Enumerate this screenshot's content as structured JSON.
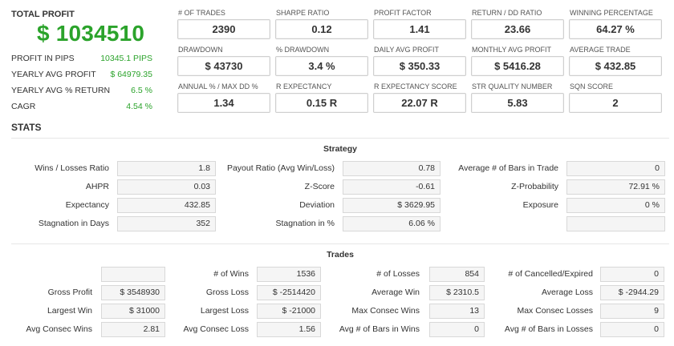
{
  "summary": {
    "total_profit_label": "TOTAL PROFIT",
    "total_profit_value": "$ 1034510",
    "rows": [
      {
        "label": "PROFIT IN PIPS",
        "value": "10345.1 PIPS"
      },
      {
        "label": "YEARLY AVG PROFIT",
        "value": "$ 64979.35"
      },
      {
        "label": "YEARLY AVG % RETURN",
        "value": "6.5 %"
      },
      {
        "label": "CAGR",
        "value": "4.54 %"
      }
    ]
  },
  "metrics": [
    {
      "label": "# OF TRADES",
      "value": "2390"
    },
    {
      "label": "SHARPE RATIO",
      "value": "0.12"
    },
    {
      "label": "PROFIT FACTOR",
      "value": "1.41"
    },
    {
      "label": "RETURN / DD RATIO",
      "value": "23.66"
    },
    {
      "label": "WINNING PERCENTAGE",
      "value": "64.27 %"
    },
    {
      "label": "DRAWDOWN",
      "value": "$ 43730"
    },
    {
      "label": "% DRAWDOWN",
      "value": "3.4 %"
    },
    {
      "label": "DAILY AVG PROFIT",
      "value": "$ 350.33"
    },
    {
      "label": "MONTHLY AVG PROFIT",
      "value": "$ 5416.28"
    },
    {
      "label": "AVERAGE TRADE",
      "value": "$ 432.85"
    },
    {
      "label": "ANNUAL % / MAX DD %",
      "value": "1.34"
    },
    {
      "label": "R EXPECTANCY",
      "value": "0.15 R"
    },
    {
      "label": "R EXPECTANCY SCORE",
      "value": "22.07 R"
    },
    {
      "label": "STR QUALITY NUMBER",
      "value": "5.83"
    },
    {
      "label": "SQN SCORE",
      "value": "2"
    }
  ],
  "stats": {
    "title": "STATS",
    "strategy": {
      "heading": "Strategy",
      "rows": [
        [
          {
            "label": "Wins / Losses Ratio",
            "value": "1.8"
          },
          {
            "label": "Payout Ratio (Avg Win/Loss)",
            "value": "0.78"
          },
          {
            "label": "Average # of Bars in Trade",
            "value": "0"
          }
        ],
        [
          {
            "label": "AHPR",
            "value": "0.03"
          },
          {
            "label": "Z-Score",
            "value": "-0.61"
          },
          {
            "label": "Z-Probability",
            "value": "72.91 %"
          }
        ],
        [
          {
            "label": "Expectancy",
            "value": "432.85"
          },
          {
            "label": "Deviation",
            "value": "$ 3629.95"
          },
          {
            "label": "Exposure",
            "value": "0 %"
          }
        ],
        [
          {
            "label": "Stagnation in Days",
            "value": "352"
          },
          {
            "label": "Stagnation in %",
            "value": "6.06 %"
          },
          {
            "label": "",
            "value": ""
          }
        ]
      ]
    },
    "trades": {
      "heading": "Trades",
      "rows": [
        [
          {
            "label": "",
            "value": ""
          },
          {
            "label": "# of Wins",
            "value": "1536"
          },
          {
            "label": "# of Losses",
            "value": "854"
          },
          {
            "label": "# of Cancelled/Expired",
            "value": "0"
          }
        ],
        [
          {
            "label": "Gross Profit",
            "value": "$ 3548930"
          },
          {
            "label": "Gross Loss",
            "value": "$ -2514420"
          },
          {
            "label": "Average Win",
            "value": "$ 2310.5"
          },
          {
            "label": "Average Loss",
            "value": "$ -2944.29"
          }
        ],
        [
          {
            "label": "Largest Win",
            "value": "$ 31000"
          },
          {
            "label": "Largest Loss",
            "value": "$ -21000"
          },
          {
            "label": "Max Consec Wins",
            "value": "13"
          },
          {
            "label": "Max Consec Losses",
            "value": "9"
          }
        ],
        [
          {
            "label": "Avg Consec Wins",
            "value": "2.81"
          },
          {
            "label": "Avg Consec Loss",
            "value": "1.56"
          },
          {
            "label": "Avg # of Bars in Wins",
            "value": "0"
          },
          {
            "label": "Avg # of Bars in Losses",
            "value": "0"
          }
        ]
      ]
    }
  },
  "colors": {
    "profit_green": "#2ba32b",
    "text": "#333333",
    "box_fill": "#f5f5f5",
    "box_border": "#d8d8d8"
  }
}
